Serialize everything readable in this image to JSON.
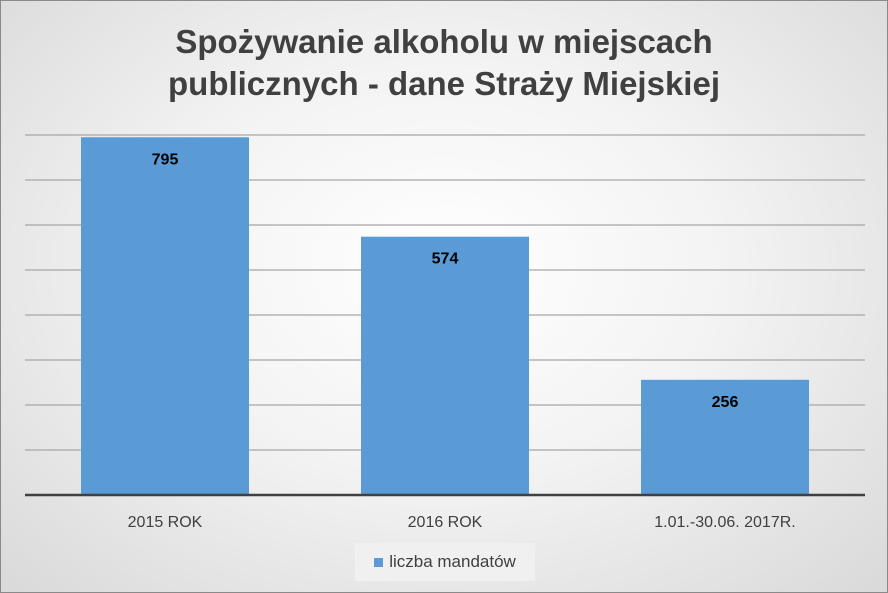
{
  "chart_data": {
    "type": "bar",
    "title_lines": [
      "Spożywanie alkoholu w miejscach",
      "publicznych - dane Straży Miejskiej"
    ],
    "categories": [
      "2015 ROK",
      "2016 ROK",
      "1.01.-30.06.  2017R."
    ],
    "series": [
      {
        "name": "liczba mandatów",
        "values": [
          795,
          574,
          256
        ]
      }
    ],
    "data_labels": [
      "795",
      "574",
      "256"
    ],
    "ylim": [
      0,
      800
    ],
    "y_grid_step": 100,
    "grid": true,
    "y_axis_labels_visible": false,
    "legend_position": "bottom",
    "colors": {
      "bar": "#5b9bd5",
      "grid": "#a6a6a6",
      "axis": "#404040"
    }
  }
}
